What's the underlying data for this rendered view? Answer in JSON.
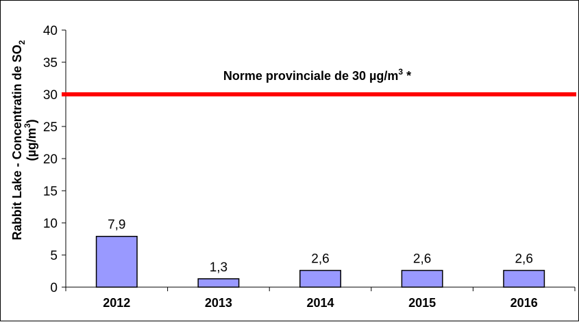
{
  "chart_data": {
    "type": "bar",
    "categories": [
      "2012",
      "2013",
      "2014",
      "2015",
      "2016"
    ],
    "values": [
      7.9,
      1.3,
      2.6,
      2.6,
      2.6
    ],
    "value_labels": [
      "7,9",
      "1,3",
      "2,6",
      "2,6",
      "2,6"
    ],
    "ylabel_line1": "Rabbit Lake - Concentratin de SO",
    "ylabel_sub": "2",
    "ylabel_line2_pre": "(µg/m",
    "ylabel_line2_sup": "3",
    "ylabel_line2_post": ")",
    "ylim": [
      0,
      40
    ],
    "yticks": [
      0,
      5,
      10,
      15,
      20,
      25,
      30,
      35,
      40
    ],
    "reference_line": {
      "value": 30,
      "label_pre": "Norme provinciale de 30 µg/m",
      "label_sup": "3",
      "label_post": " *",
      "color": "#ff0000"
    },
    "bar_color": "#9999ff",
    "grid": false,
    "legend": "none"
  }
}
